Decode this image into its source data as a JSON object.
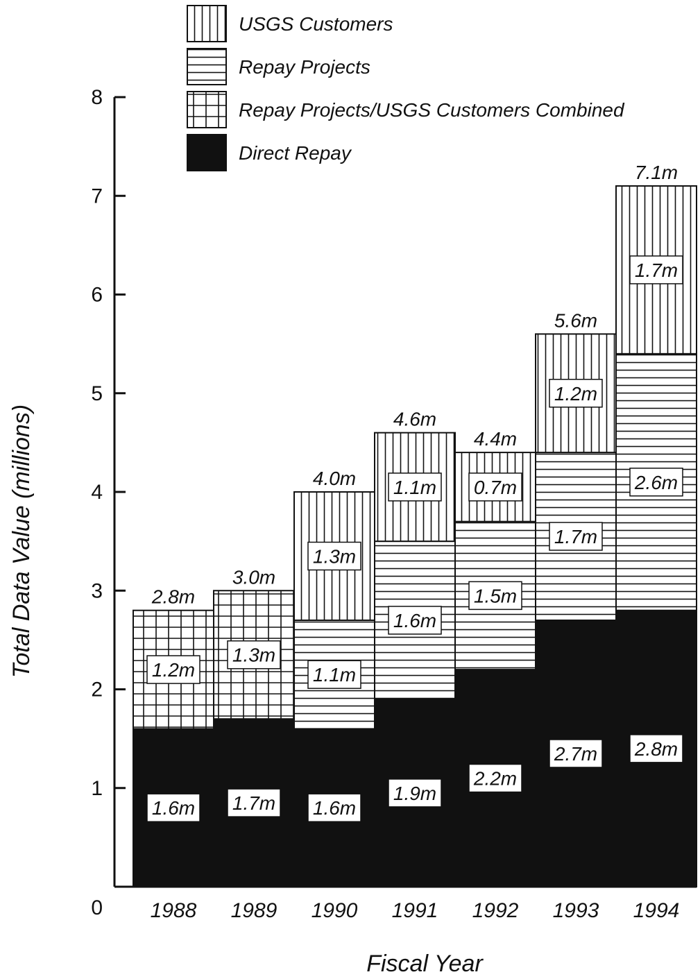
{
  "chart_data": {
    "type": "bar",
    "stacked": true,
    "title": "",
    "xlabel": "Fiscal Year",
    "ylabel": "Total Data Value (millions)",
    "ylim": [
      0,
      8
    ],
    "yticks": [
      0,
      1,
      2,
      3,
      4,
      5,
      6,
      7,
      8
    ],
    "categories": [
      "1988",
      "1989",
      "1990",
      "1991",
      "1992",
      "1993",
      "1994"
    ],
    "series": [
      {
        "name": "Direct Repay",
        "pattern": "solid",
        "color": "#111111",
        "values": [
          1.6,
          1.7,
          1.6,
          1.9,
          2.2,
          2.7,
          2.8
        ],
        "labels": [
          "1.6m",
          "1.7m",
          "1.6m",
          "1.9m",
          "2.2m",
          "2.7m",
          "2.8m"
        ]
      },
      {
        "name": "Repay Projects/USGS Customers Combined",
        "pattern": "grid",
        "values": [
          1.2,
          1.3,
          0,
          0,
          0,
          0,
          0
        ],
        "labels": [
          "1.2m",
          "1.3m",
          "",
          "",
          "",
          "",
          ""
        ]
      },
      {
        "name": "Repay Projects",
        "pattern": "horizontal",
        "values": [
          0,
          0,
          1.1,
          1.6,
          1.5,
          1.7,
          2.6
        ],
        "labels": [
          "",
          "",
          "1.1m",
          "1.6m",
          "1.5m",
          "1.7m",
          "2.6m"
        ]
      },
      {
        "name": "USGS Customers",
        "pattern": "vertical",
        "values": [
          0,
          0,
          1.3,
          1.1,
          0.7,
          1.2,
          1.7
        ],
        "labels": [
          "",
          "",
          "1.3m",
          "1.1m",
          "0.7m",
          "1.2m",
          "1.7m"
        ]
      }
    ],
    "totals": [
      2.8,
      3.0,
      4.0,
      4.6,
      4.4,
      5.6,
      7.1
    ],
    "total_labels": [
      "2.8m",
      "3.0m",
      "4.0m",
      "4.6m",
      "4.4m",
      "5.6m",
      "7.1m"
    ],
    "legend": {
      "placement": "top",
      "entries": [
        {
          "name": "USGS Customers",
          "pattern": "vertical"
        },
        {
          "name": "Repay Projects",
          "pattern": "horizontal"
        },
        {
          "name": "Repay Projects/USGS Customers Combined",
          "pattern": "grid"
        },
        {
          "name": "Direct Repay",
          "pattern": "solid"
        }
      ]
    },
    "grid": false
  }
}
